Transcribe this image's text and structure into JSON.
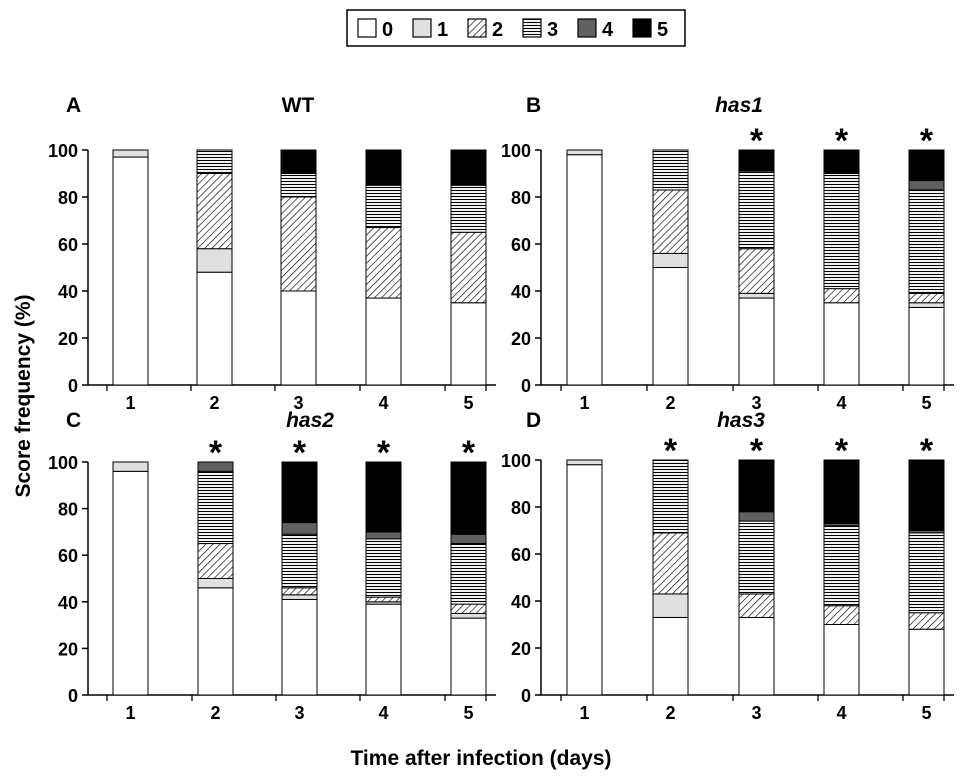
{
  "figure": {
    "ylabel": "Score frequency (%)",
    "xlabel": "Time after infection (days)",
    "legend": {
      "placement": "top-center",
      "entries": [
        {
          "label": "0",
          "pattern": "white"
        },
        {
          "label": "1",
          "pattern": "light-gray"
        },
        {
          "label": "2",
          "pattern": "diagonal-hatch"
        },
        {
          "label": "3",
          "pattern": "horizontal-lines"
        },
        {
          "label": "4",
          "pattern": "dark-gray"
        },
        {
          "label": "5",
          "pattern": "black"
        }
      ]
    },
    "colors": {
      "score0": "#ffffff",
      "score1": "#e0e0e0",
      "score4": "#606060",
      "score5": "#000000"
    },
    "significance_marker": "*"
  },
  "chart_data": [
    {
      "type": "bar",
      "stacked": true,
      "panel_letter": "A",
      "title": "WT",
      "title_italic": false,
      "categories": [
        "1",
        "2",
        "3",
        "4",
        "5"
      ],
      "ylim": [
        0,
        100
      ],
      "yticks": [
        "0",
        "20",
        "40",
        "60",
        "80",
        "100"
      ],
      "significant": [
        false,
        false,
        false,
        false,
        false
      ],
      "series": [
        {
          "name": "0",
          "values": [
            97,
            48,
            40,
            37,
            35
          ]
        },
        {
          "name": "1",
          "values": [
            3,
            10,
            0,
            0,
            0
          ]
        },
        {
          "name": "2",
          "values": [
            0,
            32,
            40,
            30,
            30
          ]
        },
        {
          "name": "3",
          "values": [
            0,
            10,
            10,
            18,
            20
          ]
        },
        {
          "name": "4",
          "values": [
            0,
            0,
            0,
            0,
            0
          ]
        },
        {
          "name": "5",
          "values": [
            0,
            0,
            10,
            15,
            15
          ]
        }
      ]
    },
    {
      "type": "bar",
      "stacked": true,
      "panel_letter": "B",
      "title": "has1",
      "title_italic": true,
      "categories": [
        "1",
        "2",
        "3",
        "4",
        "5"
      ],
      "ylim": [
        0,
        100
      ],
      "yticks": [
        "0",
        "20",
        "40",
        "60",
        "80",
        "100"
      ],
      "significant": [
        false,
        false,
        true,
        true,
        true
      ],
      "series": [
        {
          "name": "0",
          "values": [
            98,
            50,
            37,
            35,
            33
          ]
        },
        {
          "name": "1",
          "values": [
            2,
            6,
            2,
            0,
            2
          ]
        },
        {
          "name": "2",
          "values": [
            0,
            27,
            19,
            6,
            4
          ]
        },
        {
          "name": "3",
          "values": [
            0,
            17,
            33,
            49,
            44
          ]
        },
        {
          "name": "4",
          "values": [
            0,
            0,
            0,
            0,
            4
          ]
        },
        {
          "name": "5",
          "values": [
            0,
            0,
            9,
            10,
            13
          ]
        }
      ]
    },
    {
      "type": "bar",
      "stacked": true,
      "panel_letter": "C",
      "title": "has2",
      "title_italic": true,
      "categories": [
        "1",
        "2",
        "3",
        "4",
        "5"
      ],
      "ylim": [
        0,
        100
      ],
      "yticks": [
        "0",
        "20",
        "40",
        "60",
        "80",
        "100"
      ],
      "significant": [
        false,
        true,
        true,
        true,
        true
      ],
      "series": [
        {
          "name": "0",
          "values": [
            96,
            46,
            41,
            39,
            33
          ]
        },
        {
          "name": "1",
          "values": [
            4,
            4,
            2,
            1,
            2
          ]
        },
        {
          "name": "2",
          "values": [
            0,
            15,
            3,
            2,
            4
          ]
        },
        {
          "name": "3",
          "values": [
            0,
            31,
            23,
            25,
            26
          ]
        },
        {
          "name": "4",
          "values": [
            0,
            4,
            5,
            3,
            4
          ]
        },
        {
          "name": "5",
          "values": [
            0,
            0,
            26,
            30,
            31
          ]
        }
      ]
    },
    {
      "type": "bar",
      "stacked": true,
      "panel_letter": "D",
      "title": "has3",
      "title_italic": true,
      "categories": [
        "1",
        "2",
        "3",
        "4",
        "5"
      ],
      "ylim": [
        0,
        100
      ],
      "yticks": [
        "0",
        "20",
        "40",
        "60",
        "80",
        "100"
      ],
      "significant": [
        false,
        true,
        true,
        true,
        true
      ],
      "series": [
        {
          "name": "0",
          "values": [
            98,
            33,
            33,
            30,
            28
          ]
        },
        {
          "name": "1",
          "values": [
            2,
            10,
            0,
            0,
            0
          ]
        },
        {
          "name": "2",
          "values": [
            0,
            26,
            10,
            8,
            7
          ]
        },
        {
          "name": "3",
          "values": [
            0,
            31,
            31,
            34,
            34
          ]
        },
        {
          "name": "4",
          "values": [
            0,
            0,
            4,
            1,
            1
          ]
        },
        {
          "name": "5",
          "values": [
            0,
            0,
            22,
            27,
            30
          ]
        }
      ]
    }
  ]
}
